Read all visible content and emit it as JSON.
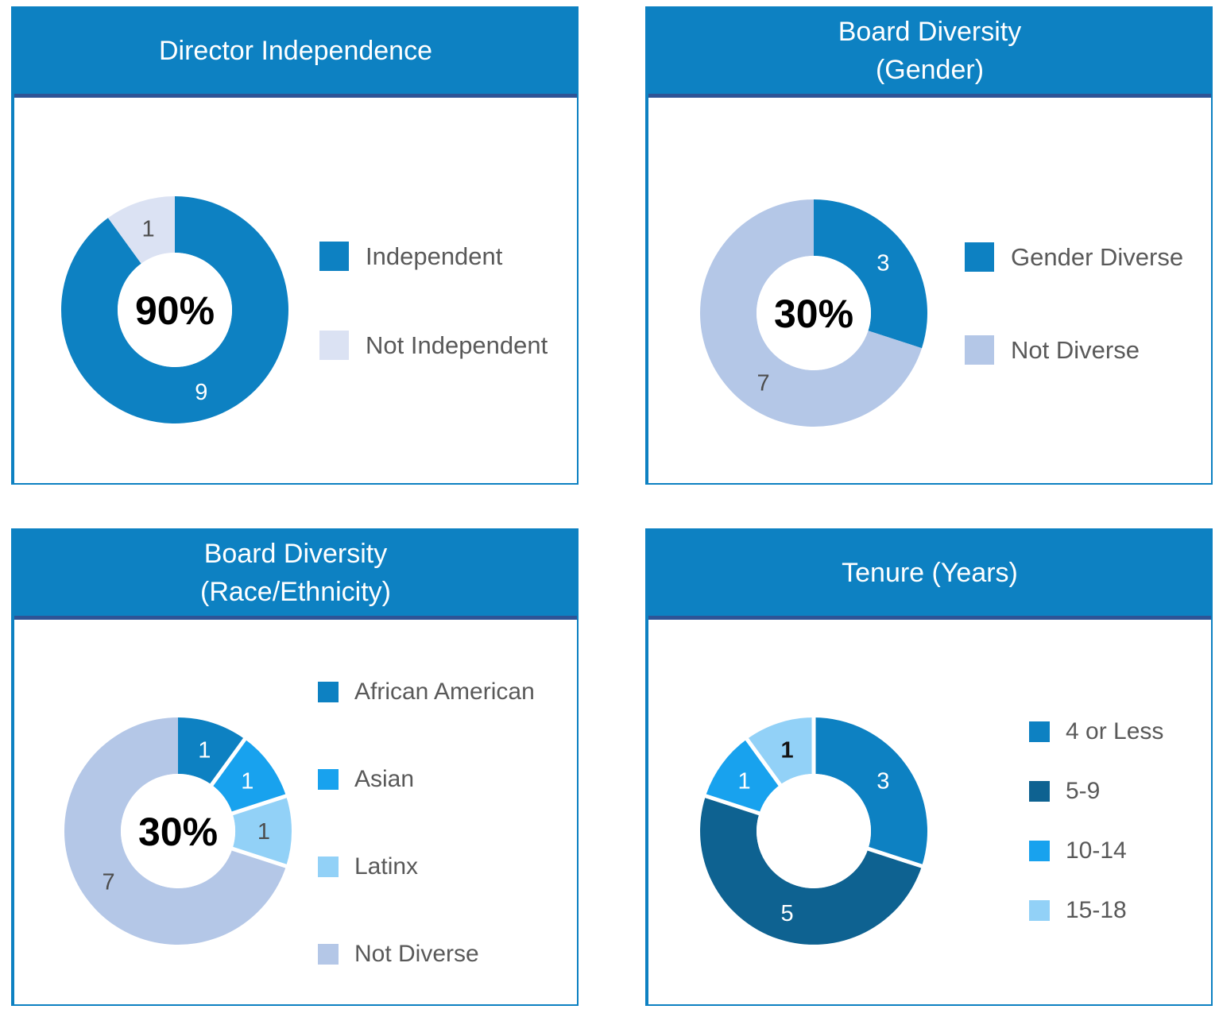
{
  "colors": {
    "primary_blue": "#0d81c2",
    "dark_blue": "#0e6291",
    "azure_blue": "#18a2ee",
    "sky_blue": "#92d1f7",
    "pale_lavender": "#dbe2f3",
    "pale_blue": "#b4c7e7",
    "header_text": "#ffffff",
    "header_underline": "#2e5496",
    "panel_border": "#0d81c2",
    "legend_text": "#595959",
    "value_label_dark": "#4d4d4d",
    "center_label": "#000000"
  },
  "chart_data": [
    {
      "type": "pie",
      "donut": true,
      "title": "Director Independence",
      "title_lines": [
        "Director Independence"
      ],
      "center_label": "90%",
      "total": 10,
      "legend_position": "right",
      "segments": [
        {
          "label": "Independent",
          "value": 9,
          "color": "#0d81c2",
          "value_label_color": "#ffffff"
        },
        {
          "label": "Not Independent",
          "value": 1,
          "color": "#dbe2f3",
          "value_label_color": "#4d4d4d"
        }
      ],
      "separators": []
    },
    {
      "type": "pie",
      "donut": true,
      "title": "Board Diversity (Gender)",
      "title_lines": [
        "Board Diversity",
        "(Gender)"
      ],
      "center_label": "30%",
      "total": 10,
      "legend_position": "right",
      "segments": [
        {
          "label": "Gender Diverse",
          "value": 3,
          "color": "#0d81c2",
          "value_label_color": "#ffffff"
        },
        {
          "label": "Not Diverse",
          "value": 7,
          "color": "#b4c7e7",
          "value_label_color": "#4d4d4d",
          "label_angle": 216
        }
      ],
      "separators": []
    },
    {
      "type": "pie",
      "donut": true,
      "title": "Board Diversity (Race/Ethnicity)",
      "title_lines": [
        "Board Diversity",
        "(Race/Ethnicity)"
      ],
      "center_label": "30%",
      "total": 10,
      "legend_position": "right",
      "segments": [
        {
          "label": "African American",
          "value": 1,
          "color": "#0d81c2",
          "value_label_color": "#ffffff"
        },
        {
          "label": "Asian",
          "value": 1,
          "color": "#18a2ee",
          "value_label_color": "#ffffff"
        },
        {
          "label": "Latinx",
          "value": 1,
          "color": "#92d1f7",
          "value_label_color": "#4d4d4d"
        },
        {
          "label": "Not Diverse",
          "value": 7,
          "color": "#b4c7e7",
          "value_label_color": "#4d4d4d"
        }
      ],
      "separators": [
        36,
        72,
        108
      ]
    },
    {
      "type": "pie",
      "donut": true,
      "title": "Tenure (Years)",
      "title_lines": [
        "Tenure (Years)"
      ],
      "total": 10,
      "legend_position": "right",
      "segments": [
        {
          "label": "4 or Less",
          "value": 3,
          "color": "#0d81c2",
          "value_label_color": "#ffffff"
        },
        {
          "label": "5-9",
          "value": 5,
          "color": "#0e6291",
          "value_label_color": "#ffffff"
        },
        {
          "label": "10-14",
          "value": 1,
          "color": "#18a2ee",
          "value_label_color": "#ffffff"
        },
        {
          "label": "15-18",
          "value": 1,
          "color": "#92d1f7",
          "value_label_color": "#141414",
          "value_label_bold": true
        }
      ],
      "separators": [
        0,
        108,
        288,
        324
      ]
    }
  ]
}
